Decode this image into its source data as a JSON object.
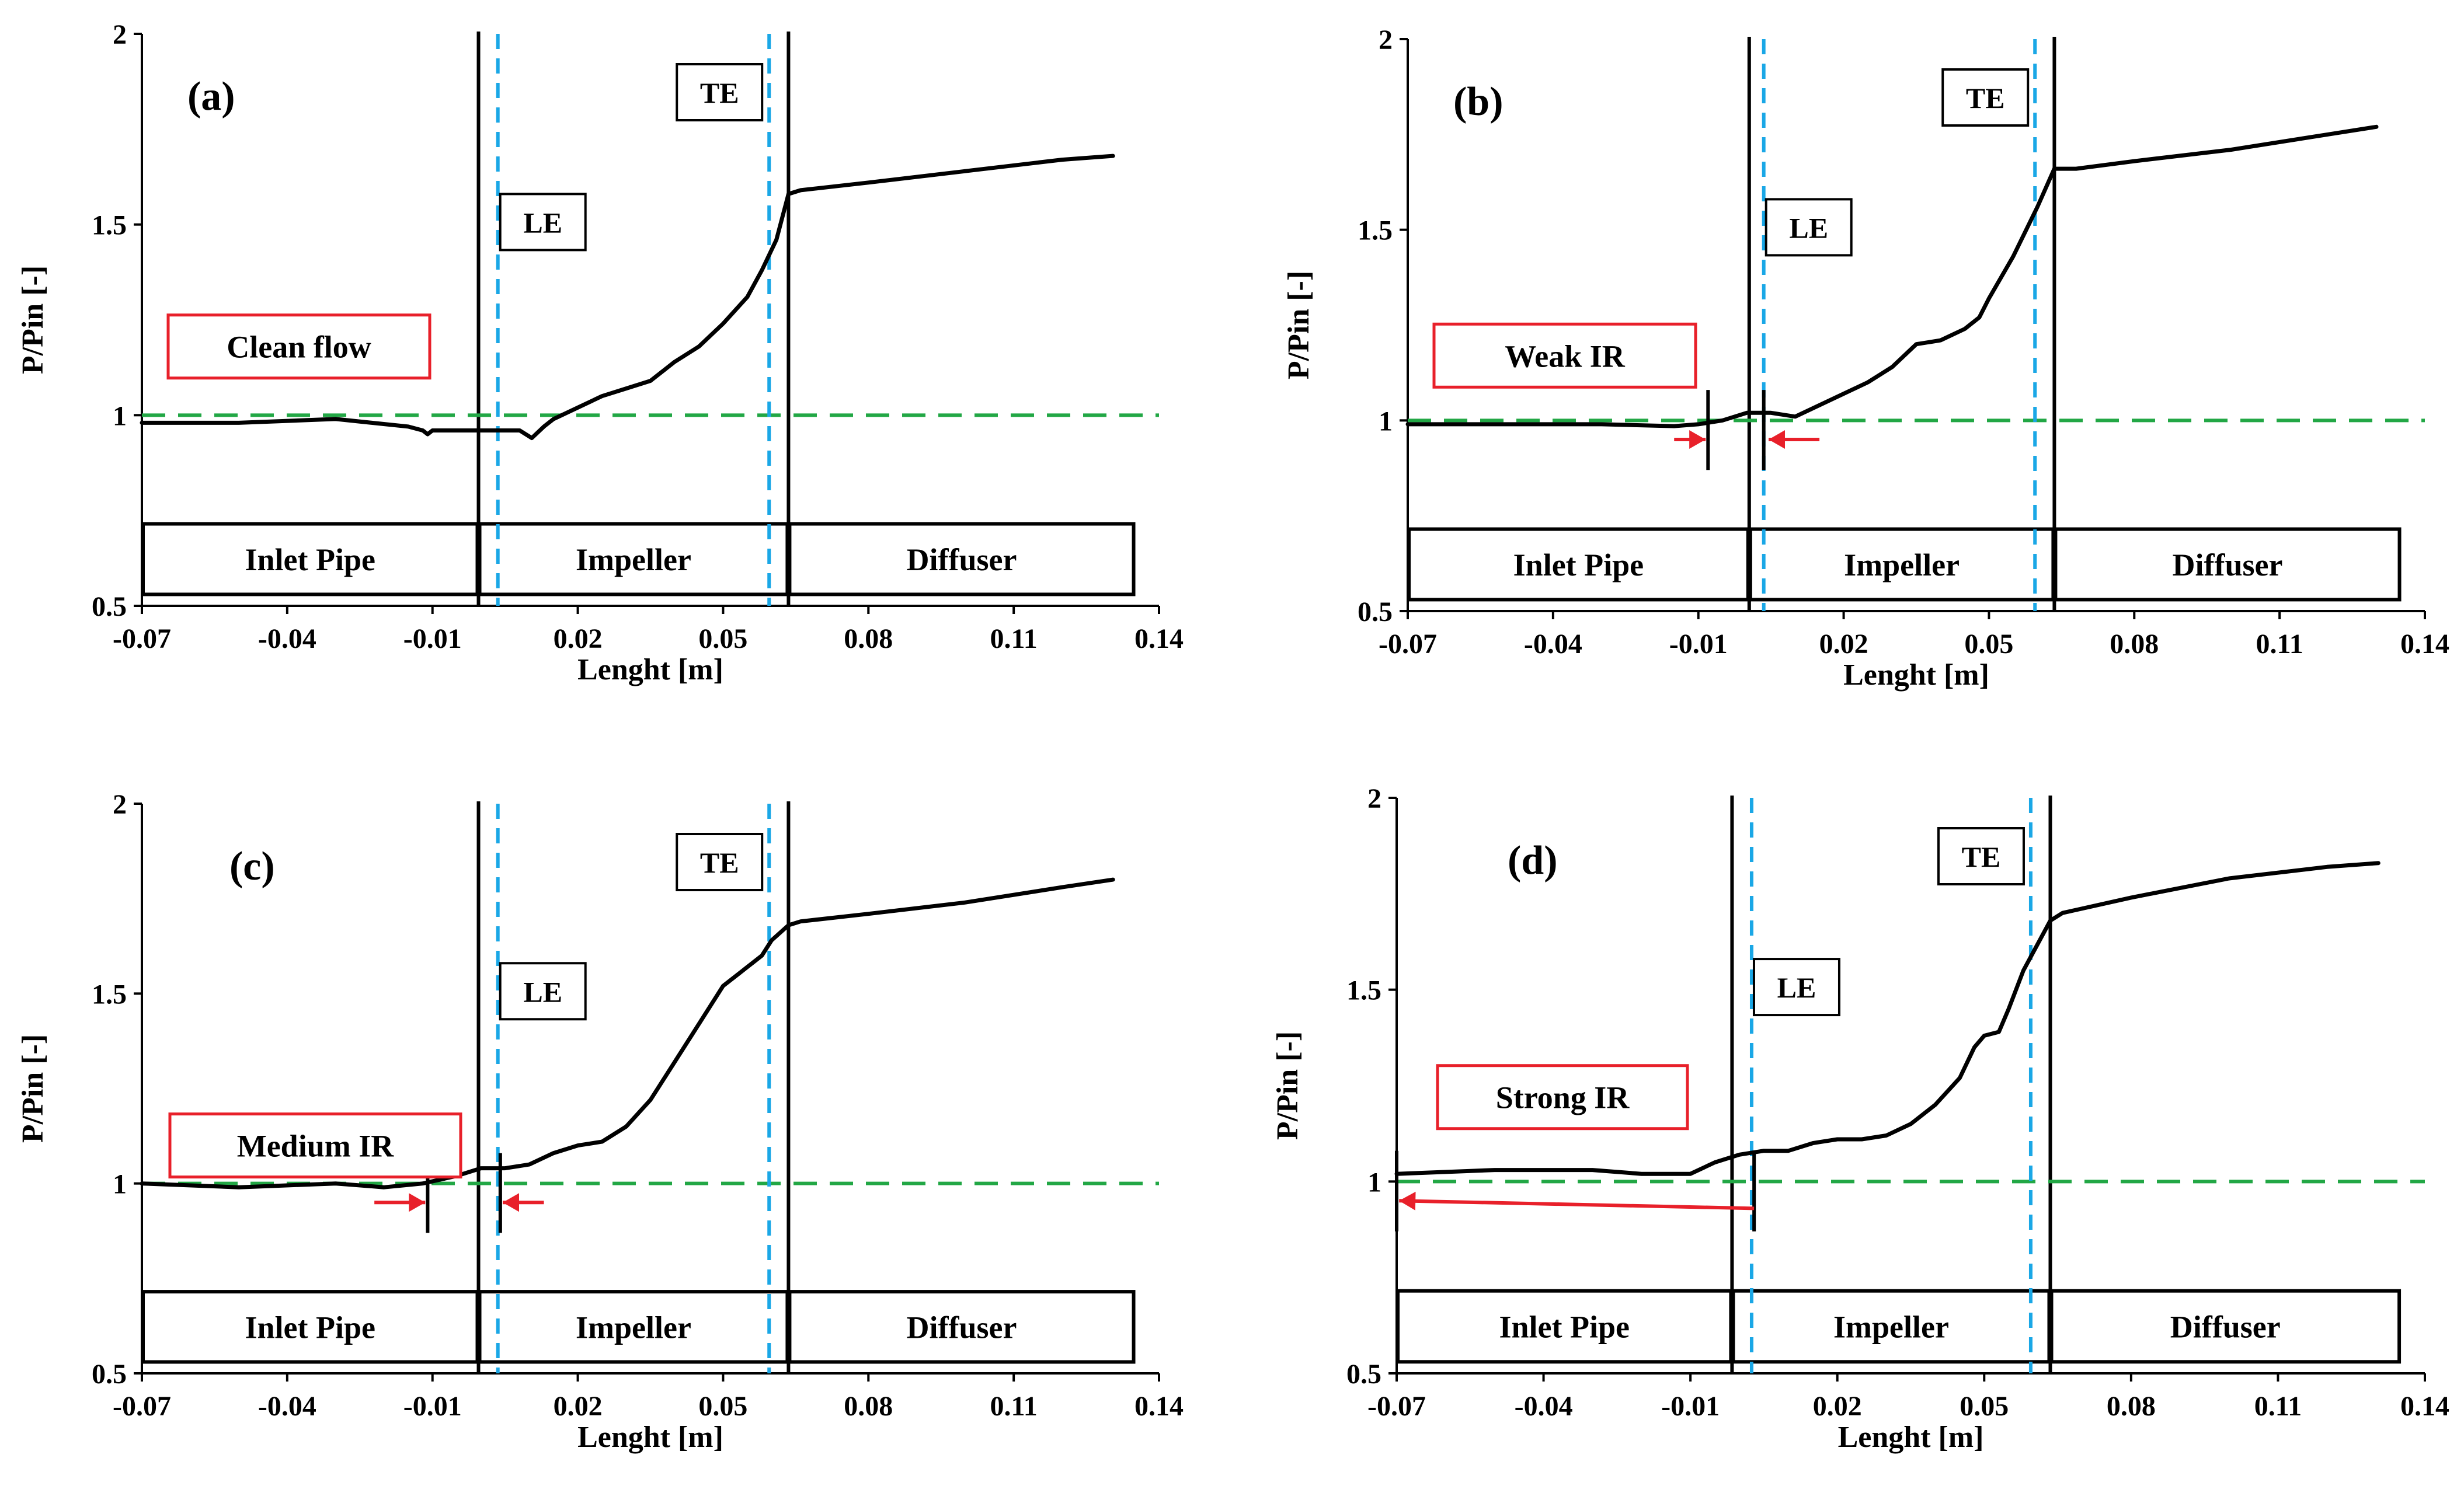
{
  "figure": {
    "x_ticks": [
      "-0.07",
      "-0.04",
      "-0.01",
      "0.02",
      "0.05",
      "0.08",
      "0.11",
      "0.14"
    ],
    "y_ticks": [
      "0.5",
      "1",
      "1.5",
      "2"
    ],
    "colors": {
      "curve": "#000000",
      "reference": "#22a745",
      "edge": "#1aa7e6",
      "annotation": "#e8202a",
      "section": "#000000"
    }
  },
  "chart_data": [
    {
      "type": "line",
      "panel": "(a)",
      "condition": "Clean flow",
      "xlabel": "Lenght [m]",
      "ylabel": "P/Pin [-]",
      "xlim": [
        -0.07,
        0.14
      ],
      "ylim": [
        0.5,
        2
      ],
      "x_ticks": [
        -0.07,
        -0.04,
        -0.01,
        0.02,
        0.05,
        0.08,
        0.11,
        0.14
      ],
      "y_ticks": [
        0.5,
        1,
        1.5,
        2
      ],
      "reference_line": {
        "y": 1
      },
      "le": {
        "label": "LE",
        "x": 0.0035
      },
      "te": {
        "label": "TE",
        "x": 0.0595
      },
      "section_boundaries": [
        -0.0005,
        0.0635
      ],
      "sections": [
        {
          "label": "Inlet Pipe",
          "x_start": -0.07,
          "x_end": -0.0005
        },
        {
          "label": "Impeller",
          "x_start": -0.0005,
          "x_end": 0.0635
        },
        {
          "label": "Diffuser",
          "x_start": 0.0635,
          "x_end": 0.135
        }
      ],
      "series": [
        {
          "name": "P/Pin",
          "x": [
            -0.07,
            -0.05,
            -0.03,
            -0.015,
            -0.012,
            -0.011,
            -0.01,
            -0.005,
            0.0,
            0.005,
            0.008,
            0.0105,
            0.013,
            0.015,
            0.02,
            0.025,
            0.03,
            0.035,
            0.04,
            0.045,
            0.05,
            0.055,
            0.058,
            0.061,
            0.0635,
            0.066,
            0.08,
            0.1,
            0.12,
            0.1305
          ],
          "y": [
            0.98,
            0.98,
            0.99,
            0.97,
            0.96,
            0.95,
            0.96,
            0.96,
            0.96,
            0.96,
            0.96,
            0.94,
            0.97,
            0.99,
            1.02,
            1.05,
            1.07,
            1.09,
            1.14,
            1.18,
            1.24,
            1.31,
            1.38,
            1.46,
            1.58,
            1.59,
            1.61,
            1.64,
            1.67,
            1.68
          ]
        }
      ],
      "markers": [],
      "annotation_arrows": []
    },
    {
      "type": "line",
      "panel": "(b)",
      "condition": "Weak IR",
      "xlabel": "Lenght [m]",
      "ylabel": "P/Pin [-]",
      "xlim": [
        -0.07,
        0.14
      ],
      "ylim": [
        0.5,
        2
      ],
      "x_ticks": [
        -0.07,
        -0.04,
        -0.01,
        0.02,
        0.05,
        0.08,
        0.11,
        0.14
      ],
      "y_ticks": [
        0.5,
        1,
        1.5,
        2
      ],
      "reference_line": {
        "y": 1
      },
      "le": {
        "label": "LE",
        "x": 0.0035
      },
      "te": {
        "label": "TE",
        "x": 0.0595
      },
      "section_boundaries": [
        0.0005,
        0.0635
      ],
      "sections": [
        {
          "label": "Inlet Pipe",
          "x_start": -0.07,
          "x_end": 0.0005
        },
        {
          "label": "Impeller",
          "x_start": 0.0005,
          "x_end": 0.0635
        },
        {
          "label": "Diffuser",
          "x_start": 0.0635,
          "x_end": 0.135
        }
      ],
      "series": [
        {
          "name": "P/Pin",
          "x": [
            -0.07,
            -0.05,
            -0.03,
            -0.015,
            -0.01,
            -0.005,
            0.0,
            0.005,
            0.01,
            0.015,
            0.02,
            0.025,
            0.03,
            0.035,
            0.04,
            0.045,
            0.048,
            0.05,
            0.055,
            0.06,
            0.0635,
            0.068,
            0.08,
            0.1,
            0.12,
            0.13
          ],
          "y": [
            0.99,
            0.99,
            0.99,
            0.985,
            0.99,
            1.0,
            1.02,
            1.02,
            1.01,
            1.04,
            1.07,
            1.1,
            1.14,
            1.2,
            1.21,
            1.24,
            1.27,
            1.32,
            1.43,
            1.56,
            1.66,
            1.66,
            1.68,
            1.71,
            1.75,
            1.77
          ]
        }
      ],
      "markers": [
        {
          "x": -0.008
        },
        {
          "x": 0.0035
        }
      ],
      "annotation_arrows": [
        {
          "from": {
            "x": -0.015,
            "y": 0.95
          },
          "to": {
            "x": -0.0085,
            "y": 0.95
          }
        },
        {
          "from": {
            "x": 0.015,
            "y": 0.95
          },
          "to": {
            "x": 0.0045,
            "y": 0.95
          }
        }
      ]
    },
    {
      "type": "line",
      "panel": "(c)",
      "condition": "Medium IR",
      "xlabel": "Lenght [m]",
      "ylabel": "P/Pin [-]",
      "xlim": [
        -0.07,
        0.14
      ],
      "ylim": [
        0.5,
        2
      ],
      "x_ticks": [
        -0.07,
        -0.04,
        -0.01,
        0.02,
        0.05,
        0.08,
        0.11,
        0.14
      ],
      "y_ticks": [
        0.5,
        1,
        1.5,
        2
      ],
      "reference_line": {
        "y": 1
      },
      "le": {
        "label": "LE",
        "x": 0.0035
      },
      "te": {
        "label": "TE",
        "x": 0.0595
      },
      "section_boundaries": [
        -0.0005,
        0.0635
      ],
      "sections": [
        {
          "label": "Inlet Pipe",
          "x_start": -0.07,
          "x_end": -0.0005
        },
        {
          "label": "Impeller",
          "x_start": -0.0005,
          "x_end": 0.0635
        },
        {
          "label": "Diffuser",
          "x_start": 0.0635,
          "x_end": 0.135
        }
      ],
      "series": [
        {
          "name": "P/Pin",
          "x": [
            -0.07,
            -0.05,
            -0.03,
            -0.02,
            -0.012,
            -0.005,
            0.0,
            0.005,
            0.01,
            0.015,
            0.02,
            0.025,
            0.03,
            0.035,
            0.04,
            0.045,
            0.05,
            0.055,
            0.058,
            0.06,
            0.0635,
            0.066,
            0.08,
            0.1,
            0.12,
            0.1305
          ],
          "y": [
            1.0,
            0.99,
            1.0,
            0.99,
            1.0,
            1.02,
            1.04,
            1.04,
            1.05,
            1.08,
            1.1,
            1.11,
            1.15,
            1.22,
            1.32,
            1.42,
            1.52,
            1.57,
            1.6,
            1.64,
            1.68,
            1.69,
            1.71,
            1.74,
            1.78,
            1.8
          ]
        }
      ],
      "markers": [
        {
          "x": -0.011
        },
        {
          "x": 0.004
        }
      ],
      "annotation_arrows": [
        {
          "from": {
            "x": -0.022,
            "y": 0.95
          },
          "to": {
            "x": -0.0115,
            "y": 0.95
          }
        },
        {
          "from": {
            "x": 0.013,
            "y": 0.95
          },
          "to": {
            "x": 0.0045,
            "y": 0.95
          }
        }
      ]
    },
    {
      "type": "line",
      "panel": "(d)",
      "condition": "Strong IR",
      "xlabel": "Lenght [m]",
      "ylabel": "P/Pin [-]",
      "xlim": [
        -0.07,
        0.14
      ],
      "ylim": [
        0.5,
        2
      ],
      "x_ticks": [
        -0.07,
        -0.04,
        -0.01,
        0.02,
        0.05,
        0.08,
        0.11,
        0.14
      ],
      "y_ticks": [
        0.5,
        1,
        1.5,
        2
      ],
      "reference_line": {
        "y": 1
      },
      "le": {
        "label": "LE",
        "x": 0.0025
      },
      "te": {
        "label": "TE",
        "x": 0.0595
      },
      "section_boundaries": [
        -0.0015,
        0.0635
      ],
      "sections": [
        {
          "label": "Inlet Pipe",
          "x_start": -0.07,
          "x_end": -0.0015
        },
        {
          "label": "Impeller",
          "x_start": -0.0015,
          "x_end": 0.0635
        },
        {
          "label": "Diffuser",
          "x_start": 0.0635,
          "x_end": 0.135
        }
      ],
      "series": [
        {
          "name": "P/Pin",
          "x": [
            -0.07,
            -0.05,
            -0.04,
            -0.03,
            -0.02,
            -0.01,
            -0.005,
            0.0,
            0.005,
            0.01,
            0.015,
            0.02,
            0.025,
            0.03,
            0.035,
            0.04,
            0.045,
            0.048,
            0.05,
            0.053,
            0.055,
            0.058,
            0.0635,
            0.066,
            0.08,
            0.1,
            0.12,
            0.1305
          ],
          "y": [
            1.02,
            1.03,
            1.03,
            1.03,
            1.02,
            1.02,
            1.05,
            1.07,
            1.08,
            1.08,
            1.1,
            1.11,
            1.11,
            1.12,
            1.15,
            1.2,
            1.27,
            1.35,
            1.38,
            1.39,
            1.45,
            1.55,
            1.68,
            1.7,
            1.74,
            1.79,
            1.82,
            1.83
          ]
        }
      ],
      "markers": [
        {
          "x": -0.07
        },
        {
          "x": 0.003
        }
      ],
      "annotation_arrows": [
        {
          "from": {
            "x": 0.003,
            "y": 0.93
          },
          "to": {
            "x": -0.0695,
            "y": 0.95
          }
        }
      ]
    }
  ]
}
